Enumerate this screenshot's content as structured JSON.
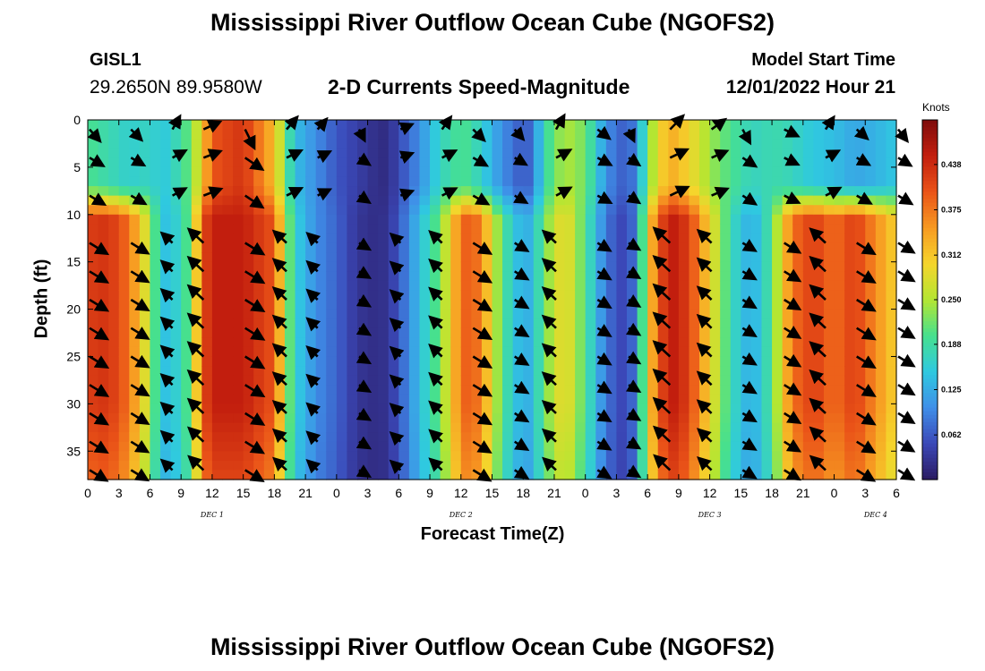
{
  "chart_data": {
    "type": "heatmap",
    "title": "Mississippi River Outflow Ocean Cube (NGOFS2)",
    "subtitle": "2-D Currents Speed-Magnitude",
    "station": {
      "id": "GISL1",
      "coords": "29.2650N  89.9580W"
    },
    "model_start": {
      "label": "Model Start Time",
      "value": "12/01/2022 Hour 21"
    },
    "xlabel": "Forecast Time(Z)",
    "ylabel": "Depth (ft)",
    "x_range_hours": [
      0,
      78
    ],
    "y_range_ft": [
      0,
      38
    ],
    "x_ticks": [
      {
        "h": 0,
        "label": "0"
      },
      {
        "h": 3,
        "label": "3"
      },
      {
        "h": 6,
        "label": "6"
      },
      {
        "h": 9,
        "label": "9"
      },
      {
        "h": 12,
        "label": "12"
      },
      {
        "h": 15,
        "label": "15"
      },
      {
        "h": 18,
        "label": "18"
      },
      {
        "h": 21,
        "label": "21"
      },
      {
        "h": 24,
        "label": "0"
      },
      {
        "h": 27,
        "label": "3"
      },
      {
        "h": 30,
        "label": "6"
      },
      {
        "h": 33,
        "label": "9"
      },
      {
        "h": 36,
        "label": "12"
      },
      {
        "h": 39,
        "label": "15"
      },
      {
        "h": 42,
        "label": "18"
      },
      {
        "h": 45,
        "label": "21"
      },
      {
        "h": 48,
        "label": "0"
      },
      {
        "h": 51,
        "label": "3"
      },
      {
        "h": 54,
        "label": "6"
      },
      {
        "h": 57,
        "label": "9"
      },
      {
        "h": 60,
        "label": "12"
      },
      {
        "h": 63,
        "label": "15"
      },
      {
        "h": 66,
        "label": "18"
      },
      {
        "h": 69,
        "label": "21"
      },
      {
        "h": 72,
        "label": "0"
      },
      {
        "h": 75,
        "label": "3"
      },
      {
        "h": 78,
        "label": "6"
      }
    ],
    "day_labels": [
      {
        "h": 12,
        "label": "DEC 1"
      },
      {
        "h": 36,
        "label": "DEC 2"
      },
      {
        "h": 60,
        "label": "DEC 3"
      },
      {
        "h": 76,
        "label": "DEC 4"
      }
    ],
    "y_ticks": [
      0,
      5,
      10,
      15,
      20,
      25,
      30,
      35
    ],
    "colorbar": {
      "unit": "Knots",
      "range": [
        0.0,
        0.5
      ],
      "ticks": [
        "0.438",
        "0.375",
        "0.312",
        "0.250",
        "0.188",
        "0.125",
        "0.062"
      ],
      "colors": [
        "#2b1b62",
        "#3b48b8",
        "#3f8fe8",
        "#2fc9e0",
        "#47e08e",
        "#b4e632",
        "#f5d52c",
        "#f79a22",
        "#ea5318",
        "#c21e0e",
        "#7e0c0c"
      ]
    },
    "speed_surface_knots": {
      "hours": [
        0,
        2,
        4,
        6,
        7,
        8,
        10,
        11,
        12,
        15,
        18,
        19,
        20,
        22,
        24,
        26,
        28,
        29,
        30,
        32,
        34,
        36,
        37,
        38,
        40,
        42,
        43,
        44,
        46,
        48,
        50,
        52,
        53,
        54,
        56,
        58,
        60,
        62,
        64,
        66,
        67,
        68,
        70,
        72,
        74,
        76,
        78
      ],
      "surface_0_8ft": [
        0.2,
        0.18,
        0.16,
        0.17,
        0.15,
        0.16,
        0.22,
        0.3,
        0.4,
        0.43,
        0.32,
        0.22,
        0.14,
        0.1,
        0.06,
        0.04,
        0.02,
        0.02,
        0.05,
        0.1,
        0.17,
        0.2,
        0.19,
        0.16,
        0.1,
        0.06,
        0.08,
        0.18,
        0.25,
        0.22,
        0.1,
        0.06,
        0.1,
        0.22,
        0.34,
        0.3,
        0.24,
        0.2,
        0.17,
        0.18,
        0.18,
        0.17,
        0.15,
        0.14,
        0.12,
        0.13,
        0.15
      ],
      "deep_10_38ft": [
        0.42,
        0.43,
        0.38,
        0.25,
        0.15,
        0.14,
        0.22,
        0.4,
        0.45,
        0.45,
        0.4,
        0.26,
        0.16,
        0.1,
        0.07,
        0.03,
        0.02,
        0.03,
        0.06,
        0.14,
        0.22,
        0.38,
        0.4,
        0.36,
        0.2,
        0.12,
        0.14,
        0.22,
        0.3,
        0.2,
        0.08,
        0.04,
        0.1,
        0.3,
        0.46,
        0.42,
        0.3,
        0.18,
        0.12,
        0.2,
        0.3,
        0.38,
        0.42,
        0.38,
        0.42,
        0.36,
        0.3
      ]
    },
    "arrow_depths_ft": [
      1,
      4,
      8,
      13,
      16,
      19,
      22,
      25,
      28,
      31,
      34,
      37
    ],
    "arrow_hours": [
      0,
      4,
      8,
      11,
      15,
      19,
      22,
      26,
      30,
      34,
      37,
      41,
      45,
      49,
      52,
      56,
      60,
      63,
      67,
      71,
      74,
      78
    ]
  }
}
